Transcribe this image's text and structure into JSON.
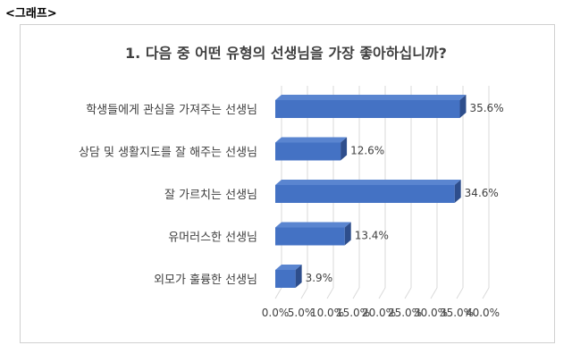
{
  "page_label": "<그래프>",
  "colors": {
    "bar_front": "#4472C4",
    "bar_top": "#5A85D0",
    "bar_side": "#2E4E8C",
    "grid": "#D9D9D9",
    "text": "#404040"
  },
  "chart_data": {
    "type": "bar",
    "orientation": "horizontal",
    "three_d": true,
    "title": "1. 다음 중 어떤 유형의 선생님을 가장 좋아하십니까?",
    "categories": [
      "학생들에게 관심을 가져주는 선생님",
      "상담 및 생활지도를 잘 해주는 선생님",
      "잘 가르치는 선생님",
      "유머러스한 선생님",
      "외모가 훌륭한 선생님"
    ],
    "values": [
      35.6,
      12.6,
      34.6,
      13.4,
      3.9
    ],
    "value_labels": [
      "35.6%",
      "12.6%",
      "34.6%",
      "13.4%",
      "3.9%"
    ],
    "xlim": [
      0,
      40
    ],
    "xticks": [
      "0.0%",
      "5.0%",
      "10.0%",
      "15.0%",
      "20.0%",
      "25.0%",
      "30.0%",
      "35.0%",
      "40.0%"
    ],
    "grid": true,
    "legend": "none"
  }
}
